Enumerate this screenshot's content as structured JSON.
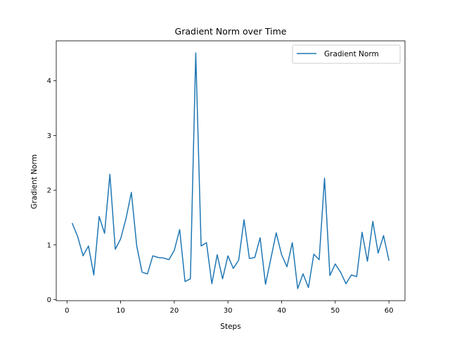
{
  "chart_data": {
    "type": "line",
    "title": "Gradient Norm over Time",
    "xlabel": "Steps",
    "ylabel": "Gradient Norm",
    "xlim": [
      -2.0,
      63.0
    ],
    "ylim": [
      -0.02,
      4.73
    ],
    "xticks": [
      0,
      10,
      20,
      30,
      40,
      50,
      60
    ],
    "yticks": [
      0,
      1,
      2,
      3,
      4
    ],
    "grid": false,
    "legend_position": "top-right",
    "series": [
      {
        "name": "Gradient Norm",
        "color": "#1f77b4",
        "x": [
          1,
          2,
          3,
          4,
          5,
          6,
          7,
          8,
          9,
          10,
          11,
          12,
          13,
          14,
          15,
          16,
          17,
          18,
          19,
          20,
          21,
          22,
          23,
          24,
          25,
          26,
          27,
          28,
          29,
          30,
          31,
          32,
          33,
          34,
          35,
          36,
          37,
          38,
          39,
          40,
          41,
          42,
          43,
          44,
          45,
          46,
          47,
          48,
          49,
          50,
          51,
          52,
          53,
          54,
          55,
          56,
          57,
          58,
          59,
          60
        ],
        "y": [
          1.39,
          1.15,
          0.8,
          0.98,
          0.45,
          1.52,
          1.21,
          2.29,
          0.92,
          1.11,
          1.48,
          1.96,
          0.98,
          0.5,
          0.47,
          0.8,
          0.77,
          0.76,
          0.73,
          0.9,
          1.28,
          0.33,
          0.38,
          4.51,
          0.98,
          1.04,
          0.29,
          0.82,
          0.38,
          0.8,
          0.57,
          0.72,
          1.46,
          0.75,
          0.77,
          1.13,
          0.28,
          0.75,
          1.22,
          0.82,
          0.6,
          1.04,
          0.2,
          0.47,
          0.22,
          0.83,
          0.73,
          2.22,
          0.44,
          0.65,
          0.5,
          0.29,
          0.45,
          0.42,
          1.23,
          0.7,
          1.43,
          0.85,
          1.17,
          0.72
        ]
      }
    ]
  }
}
